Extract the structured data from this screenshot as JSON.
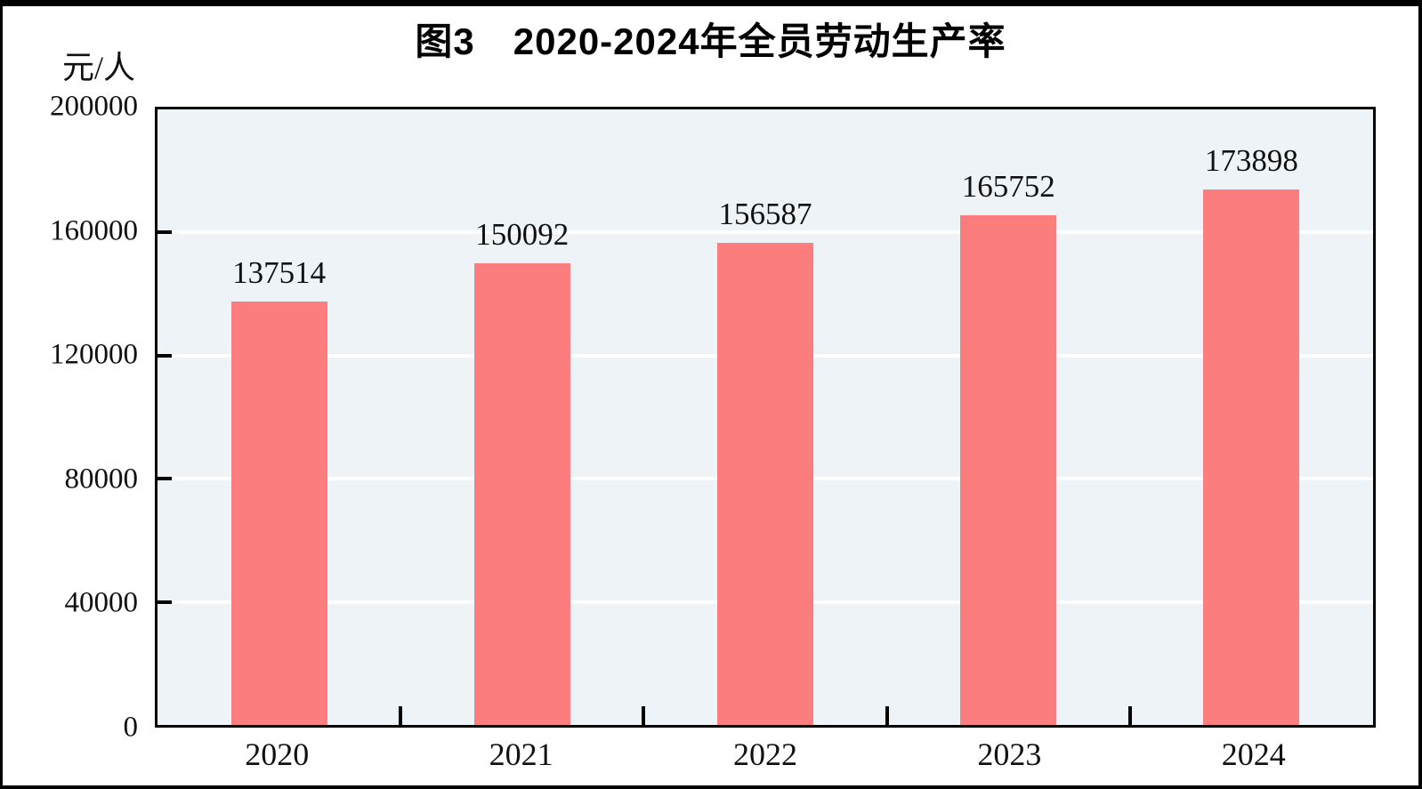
{
  "chart_data": {
    "type": "bar",
    "title": "图3　2020-2024年全员劳动生产率",
    "unit_label": "元/人",
    "categories": [
      "2020",
      "2021",
      "2022",
      "2023",
      "2024"
    ],
    "values": [
      137514,
      150092,
      156587,
      165752,
      173898
    ],
    "ylim": [
      0,
      200000
    ],
    "yticks": [
      0,
      40000,
      80000,
      120000,
      160000,
      200000
    ],
    "grid": "horizontal white gridlines on light-blue plot background",
    "legend": "none",
    "colors": {
      "bar": "#FB7D7D",
      "plot_background": "#EDF3F7",
      "gridline": "#FFFFFF",
      "axis": "#000000",
      "text": "#111111",
      "page_background": "#FFFFFF"
    }
  }
}
